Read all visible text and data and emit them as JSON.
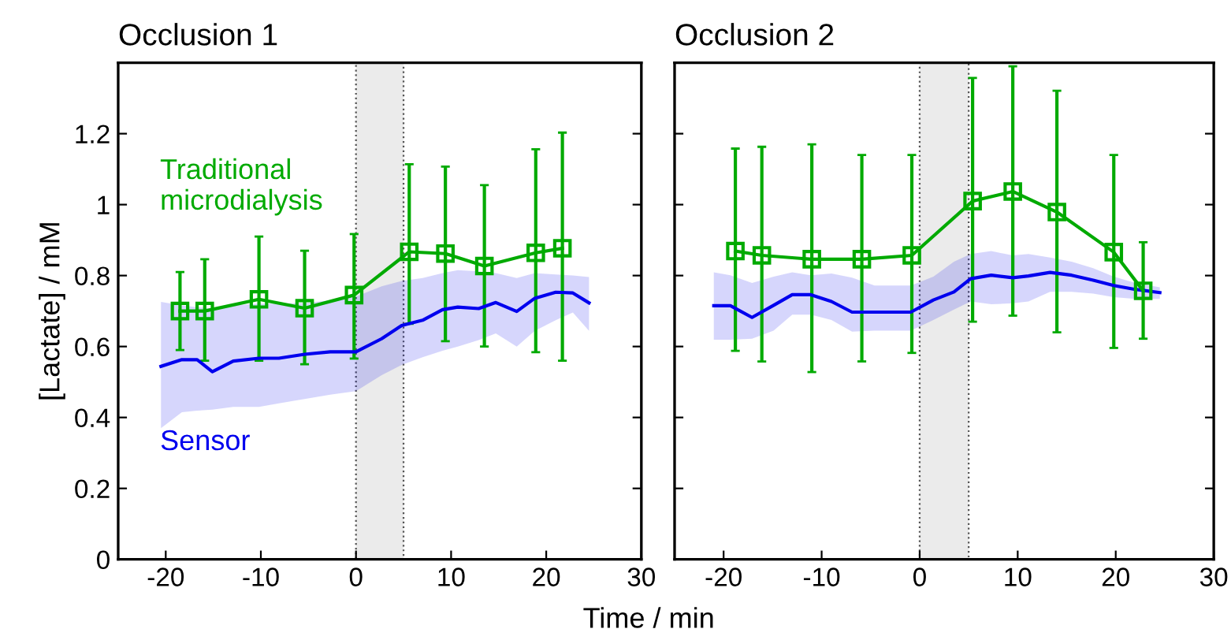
{
  "chart_data": [
    {
      "type": "line",
      "title": "Occlusion 1",
      "xlabel": "Time / min",
      "ylabel": "[Lactate] / mM",
      "xlim": [
        -25,
        30
      ],
      "xticks": [
        -20,
        -10,
        0,
        10,
        20,
        30
      ],
      "ylim": [
        0,
        1.4
      ],
      "yticks": [
        0,
        0.2,
        0.4,
        0.6,
        0.8,
        1,
        1.2
      ],
      "grid": false,
      "legend": false,
      "bands": [
        {
          "axis": "x",
          "from": 0,
          "to": 5,
          "color": "#ebebeb"
        }
      ],
      "series": [
        {
          "name": "Sensor",
          "color": "#0000ee",
          "marker": "none",
          "x": [
            -20.5,
            -18.3,
            -16.7,
            -15.1,
            -12.9,
            -10.2,
            -8.1,
            -5.4,
            -2.7,
            0,
            2.7,
            4.8,
            7.0,
            9.1,
            10.7,
            12.9,
            14.7,
            16.9,
            18.8,
            21.0,
            22.8,
            24.5
          ],
          "values": [
            0.544,
            0.563,
            0.563,
            0.529,
            0.559,
            0.567,
            0.567,
            0.578,
            0.585,
            0.585,
            0.622,
            0.659,
            0.674,
            0.704,
            0.711,
            0.707,
            0.724,
            0.699,
            0.736,
            0.753,
            0.751,
            0.723
          ],
          "upper": [
            0.726,
            0.716,
            0.711,
            0.707,
            0.716,
            0.721,
            0.721,
            0.723,
            0.73,
            0.741,
            0.77,
            0.785,
            0.793,
            0.807,
            0.815,
            0.812,
            0.807,
            0.793,
            0.807,
            0.803,
            0.8,
            0.796
          ],
          "lower": [
            0.37,
            0.415,
            0.419,
            0.422,
            0.43,
            0.43,
            0.44,
            0.452,
            0.464,
            0.474,
            0.519,
            0.548,
            0.57,
            0.588,
            0.6,
            0.618,
            0.637,
            0.6,
            0.644,
            0.674,
            0.696,
            0.644
          ]
        },
        {
          "name": "Traditional microdialysis",
          "color": "#00aa00",
          "marker": "square",
          "x": [
            -18.5,
            -15.9,
            -10.2,
            -5.4,
            -0.2,
            5.6,
            9.4,
            13.5,
            18.9,
            21.7
          ],
          "values": [
            0.7,
            0.7,
            0.733,
            0.708,
            0.745,
            0.867,
            0.862,
            0.827,
            0.864,
            0.877
          ],
          "errors": [
            [
              0.59,
              0.81
            ],
            [
              0.56,
              0.846
            ],
            [
              0.56,
              0.91
            ],
            [
              0.55,
              0.87
            ],
            [
              0.566,
              0.917
            ],
            [
              0.664,
              1.114
            ],
            [
              0.615,
              1.107
            ],
            [
              0.6,
              1.055
            ],
            [
              0.584,
              1.156
            ],
            [
              0.56,
              1.203
            ]
          ]
        }
      ]
    },
    {
      "type": "line",
      "title": "Occlusion 2",
      "xlim": [
        -25,
        30
      ],
      "xticks": [
        -20,
        -10,
        0,
        10,
        20,
        30
      ],
      "ylim": [
        0,
        1.4
      ],
      "yticks": [
        0,
        0.2,
        0.4,
        0.6,
        0.8,
        1,
        1.2
      ],
      "tick_labels": "x",
      "grid": false,
      "legend": false,
      "bands": [
        {
          "axis": "x",
          "from": 0,
          "to": 5,
          "color": "#ebebeb"
        }
      ],
      "series": [
        {
          "color": "#0000ee",
          "marker": "none",
          "x": [
            -21.0,
            -19.3,
            -17.1,
            -14.9,
            -13.0,
            -11.1,
            -9.0,
            -6.9,
            -4.6,
            -0.9,
            1.4,
            3.5,
            5.2,
            7.3,
            9.5,
            11.1,
            13.3,
            15.5,
            17.7,
            19.8,
            22.0,
            24.5
          ],
          "values": [
            0.715,
            0.715,
            0.682,
            0.716,
            0.746,
            0.746,
            0.727,
            0.697,
            0.697,
            0.697,
            0.731,
            0.754,
            0.791,
            0.801,
            0.794,
            0.799,
            0.809,
            0.801,
            0.787,
            0.772,
            0.761,
            0.752
          ],
          "upper": [
            0.809,
            0.801,
            0.779,
            0.797,
            0.809,
            0.801,
            0.806,
            0.794,
            0.772,
            0.772,
            0.797,
            0.839,
            0.861,
            0.869,
            0.857,
            0.861,
            0.851,
            0.839,
            0.821,
            0.797,
            0.779,
            0.767
          ],
          "lower": [
            0.619,
            0.619,
            0.622,
            0.645,
            0.69,
            0.69,
            0.675,
            0.642,
            0.645,
            0.645,
            0.675,
            0.704,
            0.727,
            0.719,
            0.722,
            0.727,
            0.754,
            0.754,
            0.749,
            0.739,
            0.734,
            0.734
          ]
        },
        {
          "color": "#00aa00",
          "marker": "square",
          "x": [
            -18.8,
            -16.1,
            -11.0,
            -5.9,
            -0.8,
            5.4,
            9.5,
            14.0,
            19.8,
            22.8
          ],
          "values": [
            0.869,
            0.857,
            0.846,
            0.846,
            0.857,
            1.01,
            1.037,
            0.979,
            0.866,
            0.757
          ],
          "errors": [
            [
              0.588,
              1.158
            ],
            [
              0.558,
              1.163
            ],
            [
              0.528,
              1.17
            ],
            [
              0.558,
              1.14
            ],
            [
              0.582,
              1.14
            ],
            [
              0.67,
              1.357
            ],
            [
              0.687,
              1.39
            ],
            [
              0.64,
              1.321
            ],
            [
              0.596,
              1.14
            ],
            [
              0.622,
              0.894
            ]
          ]
        }
      ]
    }
  ]
}
